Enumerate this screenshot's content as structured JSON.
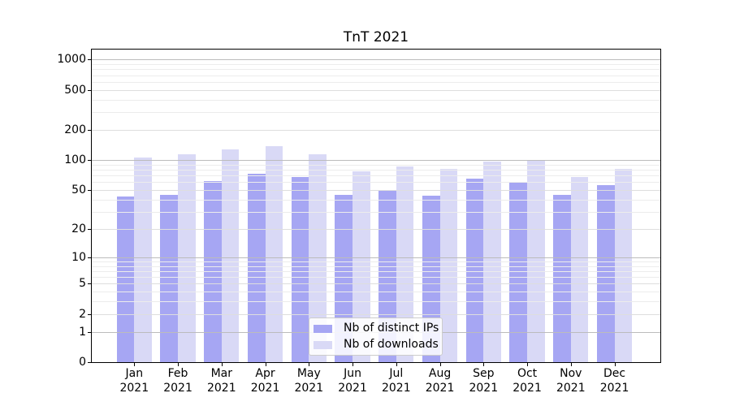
{
  "chart_data": {
    "type": "bar",
    "title": "TnT 2021",
    "categories": [
      "Jan",
      "Feb",
      "Mar",
      "Apr",
      "May",
      "Jun",
      "Jul",
      "Aug",
      "Sep",
      "Oct",
      "Nov",
      "Dec"
    ],
    "category_year": "2021",
    "series": [
      {
        "name": "Nb of distinct IPs",
        "color": "#a6a6f3",
        "values": [
          43,
          45,
          62,
          73,
          68,
          45,
          49,
          44,
          65,
          60,
          45,
          56
        ]
      },
      {
        "name": "Nb of downloads",
        "color": "#d9d9f6",
        "values": [
          106,
          115,
          129,
          139,
          114,
          77,
          87,
          81,
          97,
          100,
          67,
          81
        ]
      }
    ],
    "y_axis": {
      "scale": "log10(1+v)",
      "ylim": [
        0,
        1260
      ],
      "tick_labels": [
        0,
        1,
        2,
        5,
        10,
        20,
        50,
        100,
        200,
        500,
        1000
      ],
      "major_gridlines": [
        1,
        10,
        100,
        1000
      ],
      "labeled_minor_gridlines": [
        2,
        5,
        20,
        50,
        200,
        500
      ],
      "minor_gridlines": [
        3,
        4,
        6,
        7,
        8,
        9,
        30,
        40,
        60,
        70,
        80,
        90,
        300,
        400,
        600,
        700,
        800,
        900
      ]
    },
    "legend": {
      "position": "lower center",
      "entries": [
        "Nb of distinct IPs",
        "Nb of downloads"
      ]
    },
    "grid": true,
    "colors": {
      "major_grid": "#bcbcbc",
      "labeled_minor_grid": "#dedede",
      "minor_grid": "#ececec",
      "axis": "#000000",
      "background": "#ffffff"
    }
  }
}
